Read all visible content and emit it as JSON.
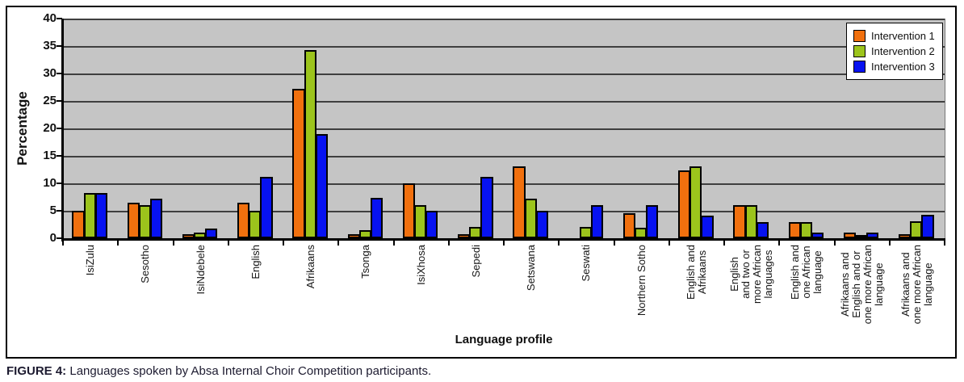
{
  "figure": {
    "caption_label": "FIGURE 4:",
    "caption_text": " Languages spoken by Absa Internal Choir Competition participants."
  },
  "colors": {
    "plot_bg": "#c5c5c5",
    "gridline": "#3f3f3f",
    "axis": "#000000",
    "legend_bg": "#ffffff"
  },
  "chart_data": {
    "type": "bar",
    "title": "",
    "xlabel": "Language profile",
    "ylabel": "Percentage",
    "ylim": [
      0,
      40
    ],
    "yticks": [
      40,
      35,
      30,
      25,
      20,
      15,
      10,
      5,
      0
    ],
    "grid": true,
    "legend_position": "top-right",
    "categories": [
      "IsiZulu",
      "Sesotho",
      "IsiNdebele",
      "English",
      "Afrikaans",
      "Tsonga",
      "IsiXhosa",
      "Sepedi",
      "Setswana",
      "Seswati",
      "Northern Sotho",
      "English and\nAfrikaans",
      "English\nand two or\nmore African\nlanguages",
      "English and\none African\nlanguage",
      "Afrikaans and\nEnglish and or\none more African\nlanguage",
      "Afrikaans and\none more African\nlanguage"
    ],
    "series": [
      {
        "name": "Intervention 1",
        "color": "#f1700e",
        "values": [
          5,
          6.4,
          0.8,
          6.4,
          27.2,
          0.8,
          10,
          0.7,
          13.1,
          0,
          4.6,
          12.3,
          6,
          3,
          1.1,
          0.7
        ]
      },
      {
        "name": "Intervention 2",
        "color": "#9cc41c",
        "values": [
          8.2,
          6,
          1.1,
          5,
          34.3,
          1.4,
          6,
          2,
          7.2,
          2,
          1.9,
          13.1,
          6,
          3,
          0.6,
          3.1
        ]
      },
      {
        "name": "Intervention 3",
        "color": "#0712f1",
        "values": [
          8.3,
          7.2,
          1.8,
          11.2,
          19,
          7.3,
          5,
          11.2,
          5,
          6.1,
          6.1,
          4.1,
          3,
          1.1,
          1.1,
          4.2
        ]
      }
    ]
  }
}
